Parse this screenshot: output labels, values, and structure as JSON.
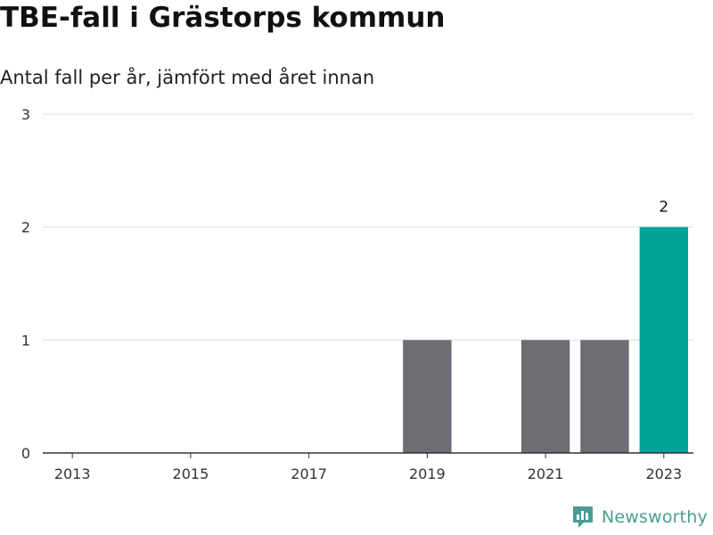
{
  "header": {
    "title": "TBE-fall i Grästorps kommun",
    "subtitle": "Antal fall per år, jämfört med året innan"
  },
  "brand": {
    "name": "Newsworthy",
    "icon": "bar-chart-logo-icon",
    "color": "#4a9c95"
  },
  "colors": {
    "bar": "#6e6d73",
    "highlight": "#00a398",
    "grid": "#dddddd",
    "axis": "#333333"
  },
  "chart_data": {
    "type": "bar",
    "categories": [
      "2013",
      "2014",
      "2015",
      "2016",
      "2017",
      "2018",
      "2019",
      "2020",
      "2021",
      "2022",
      "2023"
    ],
    "values": [
      0,
      0,
      0,
      0,
      0,
      0,
      1,
      0,
      1,
      1,
      2
    ],
    "highlight_index": 10,
    "x_tick_labels": [
      "2013",
      "2015",
      "2017",
      "2019",
      "2021",
      "2023"
    ],
    "y_ticks": [
      0,
      1,
      2,
      3
    ],
    "ylim": [
      0,
      3
    ],
    "data_labels": [
      {
        "category": "2023",
        "text": "2"
      }
    ],
    "grid": true,
    "legend": "none"
  }
}
